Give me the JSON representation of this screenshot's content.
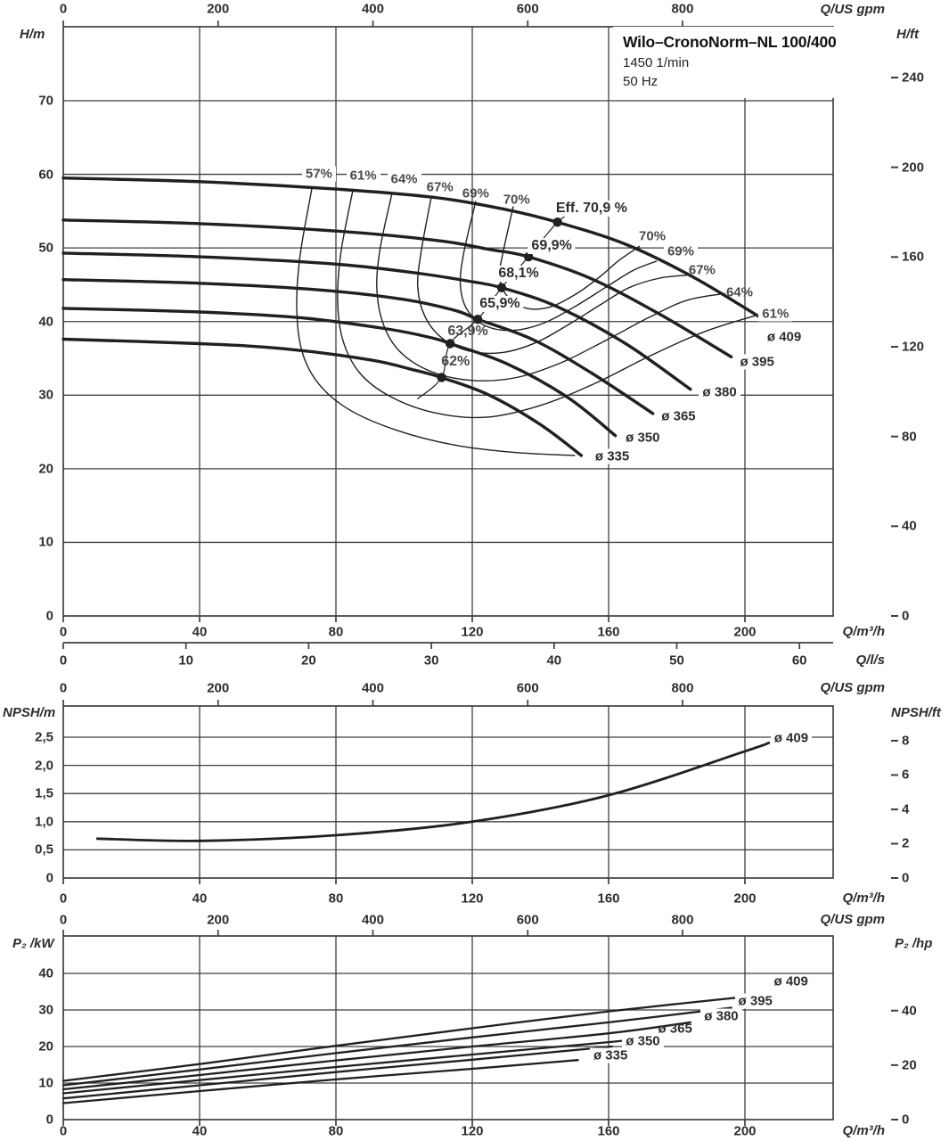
{
  "title_box": {
    "model": "Wilo–CronoNorm–NL 100/400",
    "speed": "1450 1/min",
    "frequency": "50 Hz"
  },
  "axis_units": {
    "flow_m3h": "Q/m³/h",
    "flow_ls": "Q/l/s",
    "flow_gpm": "Q/US gpm",
    "head_m": "H/m",
    "head_ft": "H/ft",
    "npsh_m": "NPSH/m",
    "npsh_ft": "NPSH/ft",
    "power_kw": "P₂ /kW",
    "power_hp": "P₂ /hp"
  },
  "colors": {
    "ink": "#231f20",
    "grid": "#3f3f3f",
    "gray_label": "#4a4a4a",
    "bg": "#ffffff"
  },
  "chart_data": [
    {
      "id": "head-flow-chart",
      "type": "line",
      "xlabel": "Q/m³/h",
      "ylabel": "H/m",
      "x_ticks_m3h": [
        0,
        40,
        80,
        120,
        160,
        200
      ],
      "x_ticks_ls": [
        0,
        10,
        20,
        30,
        40,
        50,
        60
      ],
      "x_ticks_gpm": [
        0,
        200,
        400,
        600,
        800
      ],
      "y_ticks_m": [
        0,
        10,
        20,
        30,
        40,
        50,
        60,
        70
      ],
      "y_ticks_ft": [
        0,
        40,
        80,
        120,
        160,
        200,
        240
      ],
      "xlim": [
        0,
        226
      ],
      "ylim": [
        0,
        80
      ],
      "head_curves": [
        {
          "name": "ø 409",
          "points": [
            [
              0,
              59.5
            ],
            [
              40,
              59.0
            ],
            [
              80,
              58.0
            ],
            [
              110,
              56.8
            ],
            [
              130,
              55.2
            ],
            [
              145,
              53.5
            ],
            [
              165,
              50.5
            ],
            [
              185,
              46.0
            ],
            [
              204,
              40.7
            ]
          ],
          "label": {
            "q": 206.5,
            "h": 37.9,
            "boxed": false
          }
        },
        {
          "name": "ø 395",
          "points": [
            [
              0,
              53.8
            ],
            [
              40,
              53.3
            ],
            [
              80,
              52.3
            ],
            [
              110,
              51.0
            ],
            [
              125,
              49.8
            ],
            [
              136.5,
              48.8
            ],
            [
              155,
              45.8
            ],
            [
              175,
              41.0
            ],
            [
              196,
              35.2
            ]
          ],
          "label": {
            "q": 197.5,
            "h": 34.5,
            "boxed": true
          }
        },
        {
          "name": "ø 380",
          "points": [
            [
              0,
              49.3
            ],
            [
              40,
              48.8
            ],
            [
              80,
              47.8
            ],
            [
              105,
              46.5
            ],
            [
              120,
              45.4
            ],
            [
              128.6,
              44.6
            ],
            [
              145,
              42.0
            ],
            [
              165,
              37.0
            ],
            [
              184,
              30.8
            ]
          ],
          "label": {
            "q": 186.5,
            "h": 30.4,
            "boxed": true
          }
        },
        {
          "name": "ø 365",
          "points": [
            [
              0,
              45.7
            ],
            [
              40,
              45.2
            ],
            [
              75,
              44.3
            ],
            [
              100,
              43.0
            ],
            [
              115,
              41.5
            ],
            [
              121.6,
              40.3
            ],
            [
              138,
              37.5
            ],
            [
              155,
              33.0
            ],
            [
              173,
              27.5
            ]
          ],
          "label": {
            "q": 175.5,
            "h": 27.1,
            "boxed": false
          }
        },
        {
          "name": "ø 350",
          "points": [
            [
              0,
              41.8
            ],
            [
              40,
              41.3
            ],
            [
              70,
              40.5
            ],
            [
              95,
              39.0
            ],
            [
              108,
              37.8
            ],
            [
              113.5,
              37.0
            ],
            [
              130,
              34.3
            ],
            [
              148,
              29.7
            ],
            [
              162,
              24.5
            ]
          ],
          "label": {
            "q": 165,
            "h": 24.2,
            "boxed": false
          }
        },
        {
          "name": "ø 335",
          "points": [
            [
              0,
              37.6
            ],
            [
              40,
              37.0
            ],
            [
              65,
              36.3
            ],
            [
              90,
              34.8
            ],
            [
              103,
              33.4
            ],
            [
              111,
              32.4
            ],
            [
              125,
              30.0
            ],
            [
              140,
              26.0
            ],
            [
              152,
              21.8
            ]
          ],
          "label": {
            "q": 155,
            "h": 21.7,
            "boxed": true
          }
        }
      ],
      "efficiency_contours": [
        {
          "name": "57%",
          "points": [
            [
              73,
              58.2
            ],
            [
              69.5,
              49
            ],
            [
              68.5,
              42
            ],
            [
              70,
              36
            ],
            [
              75,
              31.5
            ],
            [
              84,
              28
            ],
            [
              98,
              25.2
            ],
            [
              115,
              23.2
            ],
            [
              133,
              22.2
            ],
            [
              150,
              21.8
            ]
          ]
        },
        {
          "name": "61%",
          "points": [
            [
              85,
              57.9
            ],
            [
              81.5,
              49.5
            ],
            [
              80.5,
              43
            ],
            [
              82,
              37.5
            ],
            [
              87,
              33
            ],
            [
              96,
              29.8
            ],
            [
              109,
              27.6
            ],
            [
              124,
              27
            ],
            [
              140,
              28.6
            ],
            [
              156,
              31.6
            ],
            [
              172,
              35.3
            ],
            [
              188,
              38.6
            ],
            [
              203,
              40.8
            ]
          ]
        },
        {
          "name": "64%",
          "points": [
            [
              96.5,
              57.5
            ],
            [
              93,
              50
            ],
            [
              92,
              44.5
            ],
            [
              94,
              39.5
            ],
            [
              99,
              35.8
            ],
            [
              108,
              33.2
            ],
            [
              120,
              32
            ],
            [
              133,
              32.4
            ],
            [
              146,
              34.4
            ],
            [
              159,
              37.4
            ],
            [
              172,
              40.6
            ],
            [
              183,
              42.9
            ],
            [
              194,
              43.8
            ]
          ]
        },
        {
          "name": "67%",
          "points": [
            [
              108,
              57
            ],
            [
              105,
              49.5
            ],
            [
              104,
              44.8
            ],
            [
              106,
              40.8
            ],
            [
              111,
              37.8
            ],
            [
              119,
              36
            ],
            [
              129,
              35.8
            ],
            [
              139,
              37.2
            ],
            [
              149,
              39.8
            ],
            [
              158,
              42.4
            ],
            [
              166,
              44.6
            ],
            [
              175,
              45.9
            ],
            [
              183,
              46.3
            ]
          ]
        },
        {
          "name": "69%",
          "points": [
            [
              121,
              56.3
            ],
            [
              117.5,
              49.3
            ],
            [
              116.5,
              45
            ],
            [
              118.5,
              41.6
            ],
            [
              124,
              39.4
            ],
            [
              132,
              38.8
            ],
            [
              141,
              39.8
            ],
            [
              150,
              42
            ],
            [
              159,
              44.6
            ],
            [
              167,
              46.9
            ],
            [
              174,
              48.2
            ]
          ]
        },
        {
          "name": "70%",
          "points": [
            [
              132,
              55.6
            ],
            [
              129,
              49.3
            ],
            [
              128,
              46
            ],
            [
              130.5,
              43.3
            ],
            [
              136,
              41.8
            ],
            [
              143,
              42
            ],
            [
              151,
              43.9
            ],
            [
              158,
              46.3
            ],
            [
              163,
              48.3
            ],
            [
              169,
              50.2
            ]
          ]
        }
      ],
      "efficiency_labels_top": [
        {
          "text": "57%",
          "q": 75,
          "h": 60.1,
          "boxed": true
        },
        {
          "text": "61%",
          "q": 88,
          "h": 59.8,
          "boxed": true
        },
        {
          "text": "64%",
          "q": 100,
          "h": 59.3,
          "boxed": true
        },
        {
          "text": "67%",
          "q": 110.5,
          "h": 58.2,
          "boxed": false
        },
        {
          "text": "69%",
          "q": 121,
          "h": 57.4,
          "boxed": false
        },
        {
          "text": "70%",
          "q": 133,
          "h": 56.5,
          "boxed": false
        }
      ],
      "efficiency_labels_right": [
        {
          "text": "70%",
          "q": 168.9,
          "h": 51.6,
          "boxed": false
        },
        {
          "text": "69%",
          "q": 176.2,
          "h": 49.5,
          "boxed": true
        },
        {
          "text": "67%",
          "q": 183.5,
          "h": 47.0,
          "boxed": false
        },
        {
          "text": "64%",
          "q": 194.5,
          "h": 44.0,
          "boxed": false
        },
        {
          "text": "61%",
          "q": 204,
          "h": 41.1,
          "boxed": true
        }
      ],
      "bep_points": [
        {
          "label": "Eff. 70,9 %",
          "q": 145,
          "h": 53.5,
          "lq": 155,
          "lh": 55.3,
          "boxed": true,
          "gray": false
        },
        {
          "label": "69,9%",
          "q": 136.5,
          "h": 48.8,
          "lq": 143.3,
          "lh": 50.2,
          "boxed": true,
          "gray": false
        },
        {
          "label": "68,1%",
          "q": 128.6,
          "h": 44.6,
          "lq": 133.6,
          "lh": 46.5,
          "boxed": true,
          "gray": false
        },
        {
          "label": "65,9%",
          "q": 121.6,
          "h": 40.3,
          "lq": 128.1,
          "lh": 42.4,
          "boxed": true,
          "gray": false
        },
        {
          "label": "63,9%",
          "q": 113.5,
          "h": 37.0,
          "lq": 118.7,
          "lh": 38.6,
          "boxed": false,
          "gray": true
        },
        {
          "label": "62%",
          "q": 111,
          "h": 32.4,
          "lq": 115.1,
          "lh": 34.5,
          "boxed": false,
          "gray": true
        }
      ],
      "bep_line": [
        [
          104,
          29.5
        ],
        [
          111,
          32.4
        ],
        [
          113.5,
          37.0
        ],
        [
          121.6,
          40.3
        ],
        [
          128.6,
          44.6
        ],
        [
          136.5,
          48.8
        ],
        [
          145,
          53.5
        ],
        [
          150,
          55.0
        ]
      ]
    },
    {
      "id": "npsh-chart",
      "type": "line",
      "xlabel": "Q/m³/h",
      "ylabel": "NPSH/m",
      "x_ticks_m3h": [
        0,
        40,
        80,
        120,
        160,
        200
      ],
      "x_ticks_gpm": [
        0,
        200,
        400,
        600,
        800
      ],
      "y_ticks_m_labels": [
        "0",
        "0,5",
        "1,0",
        "1,5",
        "2,0",
        "2,5"
      ],
      "y_ticks_m_values": [
        0,
        0.5,
        1.0,
        1.5,
        2.0,
        2.5
      ],
      "y_ticks_ft": [
        0,
        2,
        4,
        6,
        8
      ],
      "xlim": [
        0,
        226
      ],
      "ylim": [
        0,
        3.05
      ],
      "curves": [
        {
          "name": "ø 409",
          "points": [
            [
              10,
              0.7
            ],
            [
              40,
              0.66
            ],
            [
              80,
              0.76
            ],
            [
              120,
              1.0
            ],
            [
              160,
              1.47
            ],
            [
              200,
              2.25
            ],
            [
              207,
              2.4
            ]
          ],
          "label": {
            "q": 207.5,
            "n": 2.48,
            "boxed": true
          }
        }
      ]
    },
    {
      "id": "power-chart",
      "type": "line",
      "xlabel": "Q/m³/h",
      "ylabel": "P₂ /kW",
      "x_ticks_m3h": [
        0,
        40,
        80,
        120,
        160,
        200
      ],
      "x_ticks_gpm": [
        0,
        200,
        400,
        600,
        800
      ],
      "y_ticks_kw": [
        0,
        10,
        20,
        30,
        40
      ],
      "y_ticks_hp": [
        0,
        20,
        40
      ],
      "xlim": [
        0,
        226
      ],
      "ylim": [
        0,
        50
      ],
      "curves": [
        {
          "name": "ø 409",
          "points": [
            [
              0,
              10.6
            ],
            [
              40,
              15.2
            ],
            [
              80,
              20.2
            ],
            [
              120,
              25.0
            ],
            [
              160,
              29.6
            ],
            [
              206,
              34.2
            ]
          ],
          "label": {
            "q": 208.5,
            "p": 37.8,
            "boxed": false
          }
        },
        {
          "name": "ø 395",
          "points": [
            [
              0,
              9.4
            ],
            [
              40,
              13.7
            ],
            [
              80,
              18.2
            ],
            [
              120,
              22.5
            ],
            [
              160,
              26.6
            ],
            [
              196,
              30.6
            ]
          ],
          "label": {
            "q": 197,
            "p": 32.5,
            "boxed": true
          }
        },
        {
          "name": "ø 380",
          "points": [
            [
              0,
              8.3
            ],
            [
              40,
              12.2
            ],
            [
              80,
              16.2
            ],
            [
              120,
              20.0
            ],
            [
              160,
              23.6
            ],
            [
              184,
              26.6
            ]
          ],
          "label": {
            "q": 187,
            "p": 28.2,
            "boxed": true
          }
        },
        {
          "name": "ø 365",
          "points": [
            [
              0,
              7.2
            ],
            [
              40,
              10.8
            ],
            [
              80,
              14.4
            ],
            [
              120,
              17.8
            ],
            [
              160,
              21.2
            ],
            [
              173,
              22.4
            ]
          ],
          "label": {
            "q": 174.5,
            "p": 24.8,
            "boxed": false
          }
        },
        {
          "name": "ø 350",
          "points": [
            [
              0,
              5.8
            ],
            [
              40,
              9.4
            ],
            [
              80,
              13.0
            ],
            [
              120,
              16.4
            ],
            [
              161,
              20.0
            ]
          ],
          "label": {
            "q": 164,
            "p": 21.4,
            "boxed": true
          }
        },
        {
          "name": "ø 335",
          "points": [
            [
              0,
              4.5
            ],
            [
              40,
              7.8
            ],
            [
              80,
              11.0
            ],
            [
              120,
              13.9
            ],
            [
              151,
              16.3
            ]
          ],
          "label": {
            "q": 154.5,
            "p": 17.6,
            "boxed": true
          }
        }
      ]
    }
  ]
}
